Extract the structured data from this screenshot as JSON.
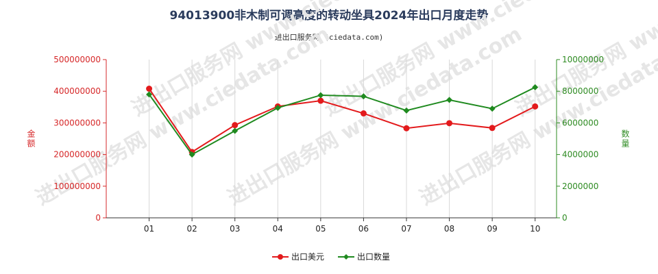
{
  "title": "94013900非木制可调高度的转动坐具2024年出口月度走势",
  "subtitle": "进出口服务网 (ciedata.com)",
  "watermark": "进出口服务网 www.ciedata.com",
  "chart_data": {
    "type": "line",
    "categories": [
      "01",
      "02",
      "03",
      "04",
      "05",
      "06",
      "07",
      "08",
      "09",
      "10"
    ],
    "y_left": {
      "label": "金额",
      "range": [
        0,
        500000000
      ],
      "ticks": [
        "0",
        "100000000",
        "200000000",
        "300000000",
        "400000000",
        "500000000"
      ]
    },
    "y_right": {
      "label": "数量",
      "range": [
        0,
        10000000
      ],
      "ticks": [
        "0",
        "2000000",
        "4000000",
        "6000000",
        "8000000",
        "10000000"
      ]
    },
    "series": [
      {
        "name": "出口美元",
        "axis": "left",
        "color": "#e31a1c",
        "marker": "circle",
        "values": [
          408000000,
          208000000,
          293000000,
          352000000,
          370000000,
          330000000,
          283000000,
          299000000,
          284000000,
          352000000
        ]
      },
      {
        "name": "出口数量",
        "axis": "right",
        "color": "#1f8a1f",
        "marker": "diamond",
        "values": [
          7800000,
          4000000,
          5500000,
          6950000,
          7750000,
          7680000,
          6780000,
          7450000,
          6900000,
          8250000
        ]
      }
    ],
    "grid": "vertical",
    "legend_position": "bottom-center"
  }
}
